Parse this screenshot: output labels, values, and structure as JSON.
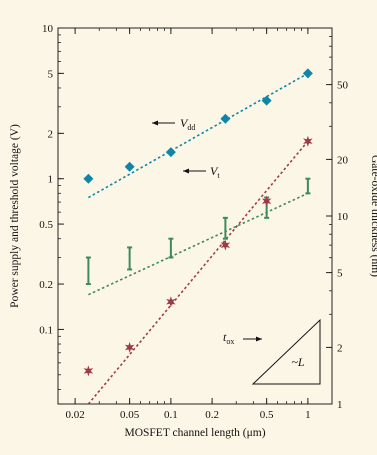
{
  "chart_data": {
    "type": "scatter",
    "xlabel": "MOSFET channel length (μm)",
    "ylabel": "Power supply and threshold voltage (V)",
    "y2label": "Gate-oxide thickness (nm)",
    "x_scale": "log",
    "y_scale": "log",
    "y2_scale": "log",
    "xlim": [
      0.015,
      1.5
    ],
    "ylim": [
      0.032,
      10
    ],
    "y2lim": [
      1,
      100
    ],
    "x_ticks": [
      "0.02",
      "0.05",
      "0.1",
      "0.2",
      "0.5",
      "1"
    ],
    "y_ticks": [
      "0.1",
      "0.2",
      "0.5",
      "1",
      "2",
      "5",
      "10"
    ],
    "y2_ticks": [
      "1",
      "2",
      "5",
      "10",
      "20",
      "50"
    ],
    "grid": false,
    "series": [
      {
        "name": "Vdd",
        "label_main": "V",
        "label_sub": "dd",
        "marker": "diamond",
        "color": "#0f86a8",
        "x": [
          0.025,
          0.05,
          0.1,
          0.25,
          0.5,
          1
        ],
        "y": [
          1.0,
          1.2,
          1.5,
          2.5,
          3.3,
          5.0
        ],
        "trend": {
          "x": [
            0.025,
            1
          ],
          "y": [
            0.75,
            5.0
          ]
        }
      },
      {
        "name": "Vt",
        "label_main": "V",
        "label_sub": "t",
        "marker": "range-bar",
        "color": "#3e8a5c",
        "x": [
          0.025,
          0.05,
          0.1,
          0.25,
          0.5,
          1
        ],
        "low": [
          0.2,
          0.25,
          0.3,
          0.4,
          0.55,
          0.8
        ],
        "high": [
          0.3,
          0.35,
          0.4,
          0.55,
          0.75,
          1.0
        ],
        "trend": {
          "x": [
            0.025,
            1
          ],
          "y": [
            0.17,
            0.8
          ]
        }
      },
      {
        "name": "tox",
        "label_main": "t",
        "label_sub": "ox",
        "marker": "star",
        "color": "#9e3a48",
        "axis": "right",
        "x": [
          0.025,
          0.05,
          0.1,
          0.25,
          0.5,
          1
        ],
        "y": [
          1.5,
          2.0,
          3.5,
          7.0,
          12.0,
          25.0
        ],
        "trend": {
          "x": [
            0.025,
            1
          ],
          "y": [
            1.0,
            25.0
          ]
        }
      }
    ],
    "slope_label": "~L"
  }
}
